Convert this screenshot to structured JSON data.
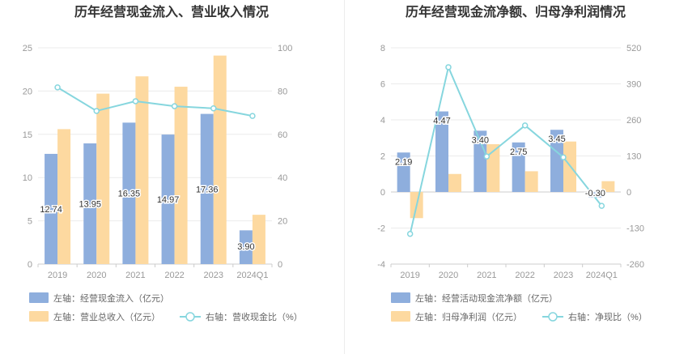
{
  "chart_data": [
    {
      "type": "bar",
      "title": "历年经营现金流入、营业收入情况",
      "categories": [
        "2019",
        "2020",
        "2021",
        "2022",
        "2023",
        "2024Q1"
      ],
      "left_axis": {
        "ticks": [
          "0",
          "5",
          "10",
          "15",
          "20",
          "25"
        ],
        "ylim": [
          0,
          25
        ]
      },
      "right_axis": {
        "ticks": [
          "0",
          "20",
          "40",
          "60",
          "80",
          "100"
        ],
        "ylim": [
          0,
          100
        ]
      },
      "series": [
        {
          "name": "左轴：经营现金流入（亿元）",
          "kind": "bar",
          "axis": "left",
          "color": "#8eaedd",
          "values": [
            12.74,
            13.95,
            16.35,
            14.97,
            17.36,
            3.9
          ],
          "labels": [
            "12.74",
            "13.95",
            "16.35",
            "14.97",
            "17.36",
            "3.90"
          ]
        },
        {
          "name": "左轴：营业总收入（亿元）",
          "kind": "bar",
          "axis": "left",
          "color": "#fdd9a0",
          "values": [
            15.6,
            19.7,
            21.7,
            20.5,
            24.1,
            5.7
          ]
        },
        {
          "name": "右轴：营收现金比（%）",
          "kind": "line",
          "axis": "right",
          "color": "#86d6de",
          "values": [
            81.7,
            70.8,
            75.3,
            73.0,
            72.0,
            68.5
          ]
        }
      ]
    },
    {
      "type": "bar",
      "title": "历年经营现金流净额、归母净利润情况",
      "categories": [
        "2019",
        "2020",
        "2021",
        "2022",
        "2023",
        "2024Q1"
      ],
      "left_axis": {
        "ticks": [
          "-4",
          "-2",
          "0",
          "2",
          "4",
          "6",
          "8"
        ],
        "ylim": [
          -4,
          8
        ]
      },
      "right_axis": {
        "ticks": [
          "-260",
          "-130",
          "0",
          "130",
          "260",
          "390",
          "520"
        ],
        "ylim": [
          -260,
          520
        ]
      },
      "series": [
        {
          "name": "左轴：经营活动现金流净额（亿元）",
          "kind": "bar",
          "axis": "left",
          "color": "#8eaedd",
          "values": [
            2.19,
            4.47,
            3.4,
            2.75,
            3.45,
            -0.3
          ],
          "labels": [
            "2.19",
            "4.47",
            "3.40",
            "2.75",
            "3.45",
            "-0.30"
          ]
        },
        {
          "name": "左轴：归母净利润（亿元）",
          "kind": "bar",
          "axis": "left",
          "color": "#fdd9a0",
          "values": [
            -1.45,
            1.0,
            2.65,
            1.15,
            2.8,
            0.6
          ]
        },
        {
          "name": "右轴：净现比（%）",
          "kind": "line",
          "axis": "right",
          "color": "#86d6de",
          "values": [
            -151,
            450,
            128,
            240,
            125,
            -50
          ]
        }
      ]
    }
  ]
}
